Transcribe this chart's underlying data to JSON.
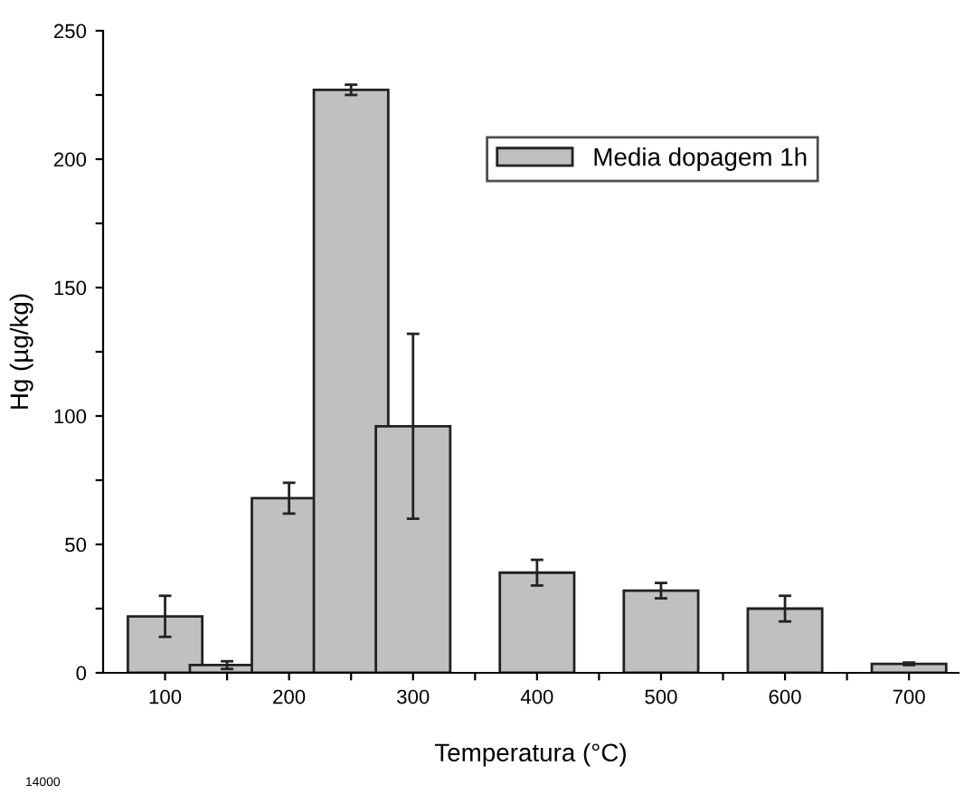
{
  "chart_data": {
    "type": "bar",
    "xlabel": "Temperatura (°C)",
    "ylabel": "Hg (µg/kg)",
    "x": [
      100,
      150,
      200,
      250,
      300,
      400,
      500,
      600,
      700
    ],
    "series": [
      {
        "name": "Media dopagem 1h",
        "color": "#c0c0c0",
        "values": [
          22,
          3,
          68,
          227,
          96,
          39,
          32,
          25,
          3.5
        ],
        "errors": [
          8,
          1.5,
          6,
          2,
          36,
          5,
          3,
          5,
          0.5
        ]
      }
    ],
    "xlim": [
      50,
      740
    ],
    "ylim": [
      0,
      250
    ],
    "xticks": [
      100,
      {
        "value": 150,
        "label": null
      },
      200,
      {
        "value": 250,
        "label": null
      },
      300,
      {
        "value": 350,
        "label": null
      },
      400,
      {
        "value": 450,
        "label": null
      },
      500,
      {
        "value": 550,
        "label": null
      },
      600,
      {
        "value": 650,
        "label": null
      },
      700
    ],
    "yticks": [
      0,
      {
        "value": 25,
        "label": null
      },
      50,
      {
        "value": 75,
        "label": null
      },
      100,
      {
        "value": 125,
        "label": null
      },
      150,
      {
        "value": 175,
        "label": null
      },
      200,
      {
        "value": 225,
        "label": null
      },
      250
    ],
    "legend": "right",
    "grid": false,
    "annotations": [
      "14000"
    ]
  }
}
